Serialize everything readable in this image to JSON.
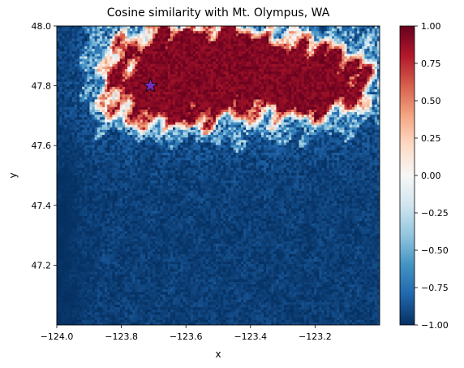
{
  "chart_data": {
    "type": "heatmap",
    "title": "Cosine similarity with Mt. Olympus, WA",
    "xlabel": "x",
    "ylabel": "y",
    "xlim": [
      -124.0,
      -123.0
    ],
    "ylim": [
      47.0,
      48.0
    ],
    "x_ticks": [
      -124.0,
      -123.8,
      -123.6,
      -123.4,
      -123.2
    ],
    "x_tick_labels": [
      "−124.0",
      "−123.8",
      "−123.6",
      "−123.4",
      "−123.2"
    ],
    "y_ticks": [
      47.2,
      47.4,
      47.6,
      47.8,
      48.0
    ],
    "y_tick_labels": [
      "47.2",
      "47.4",
      "47.6",
      "47.8",
      "48.0"
    ],
    "colormap": "RdBu_r",
    "colormap_stops": [
      "#053061",
      "#2166ac",
      "#4393c3",
      "#92c5de",
      "#d1e5f0",
      "#f7f7f7",
      "#fddbc7",
      "#f4a582",
      "#d6604d",
      "#b2182b",
      "#67001f"
    ],
    "colorbar": {
      "range": [
        -1.0,
        1.0
      ],
      "ticks": [
        -1.0,
        -0.75,
        -0.5,
        -0.25,
        0.0,
        0.25,
        0.5,
        0.75,
        1.0
      ],
      "tick_labels": [
        "−1.00",
        "−0.75",
        "−0.50",
        "−0.25",
        "0.00",
        "0.25",
        "0.50",
        "0.75",
        "1.00"
      ]
    },
    "grid": false,
    "marker": {
      "shape": "star",
      "x": -123.71,
      "y": 47.8,
      "color": "#7b2cbf"
    }
  }
}
